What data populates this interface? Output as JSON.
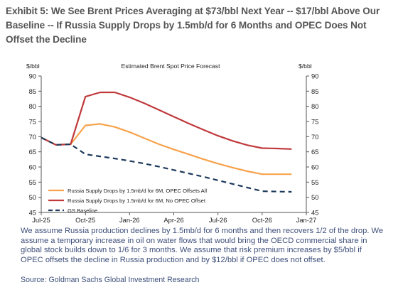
{
  "title": "Exhibit 5: We See Brent Prices Averaging at $73/bbl Next Year -- $17/bbl Above Our Baseline -- If Russia Supply Drops by 1.5mb/d for 6 Months and OPEC Does Not Offset the Decline",
  "note": "We assume Russia production declines by 1.5mb/d for 6 months and then recovers 1/2 of the drop. We assume a temporary increase in oil on water flows that would bring the OECD commercial share in global stock builds down to 1/6 for 3 months. We assume that risk premium increases by $5/bbl if OPEC offsets the decline in Russia production and by $12/bbl if OPEC does not offset.",
  "source": "Source: Goldman Sachs Global Investment Research",
  "colors": {
    "orange": "#f7a24b",
    "red": "#c0393c",
    "navy": "#1d3a5c",
    "axis": "#555555"
  },
  "chart_data": {
    "type": "line",
    "title": "Estimated Brent Spot Price Forecast",
    "ylabel_left": "$/bbl",
    "ylabel_right": "$/bbl",
    "ylim": [
      45,
      90
    ],
    "yticks": [
      45,
      50,
      55,
      60,
      65,
      70,
      75,
      80,
      85,
      90
    ],
    "x_ticks": [
      {
        "label": "Jul-25",
        "x": 0
      },
      {
        "label": "Oct-25",
        "x": 3
      },
      {
        "label": "Jan-26",
        "x": 6
      },
      {
        "label": "Apr-26",
        "x": 9
      },
      {
        "label": "Jul-26",
        "x": 12
      },
      {
        "label": "Oct-26",
        "x": 15
      },
      {
        "label": "Jan-27",
        "x": 18
      }
    ],
    "x_labels": [
      "Jul-25",
      "Aug-25",
      "Sep-25",
      "Oct-25",
      "Nov-25",
      "Dec-25",
      "Jan-26",
      "Feb-26",
      "Mar-26",
      "Apr-26",
      "May-26",
      "Jun-26",
      "Jul-26",
      "Aug-26",
      "Sep-26",
      "Oct-26",
      "Nov-26",
      "Dec-26"
    ],
    "legend_position": "bottom-left",
    "series": [
      {
        "name": "Russia Supply Drops by 1.5mb/d for 6M, OPEC Offsets All",
        "color": "orange",
        "style": "solid",
        "values": [
          69.7,
          67.3,
          67.5,
          73.7,
          74.2,
          73.2,
          71.5,
          69.5,
          67.5,
          65.8,
          64.2,
          62.6,
          61.1,
          59.8,
          58.6,
          57.6,
          57.6,
          57.6
        ]
      },
      {
        "name": "Russia Supply Drops by 1.5mb/d for 6M, No OPEC Offset",
        "color": "red",
        "style": "solid",
        "values": [
          69.7,
          67.3,
          67.5,
          83.2,
          84.6,
          84.6,
          83.0,
          81.0,
          78.8,
          76.6,
          74.4,
          72.3,
          70.3,
          68.6,
          67.2,
          66.2,
          66.1,
          65.9
        ]
      },
      {
        "name": "GS Baseline",
        "color": "navy",
        "style": "dashed",
        "values": [
          69.7,
          67.3,
          67.5,
          64.2,
          63.5,
          62.8,
          62.0,
          61.1,
          60.1,
          59.0,
          57.9,
          56.8,
          55.6,
          54.4,
          53.2,
          52.0,
          51.9,
          51.8
        ]
      }
    ]
  }
}
